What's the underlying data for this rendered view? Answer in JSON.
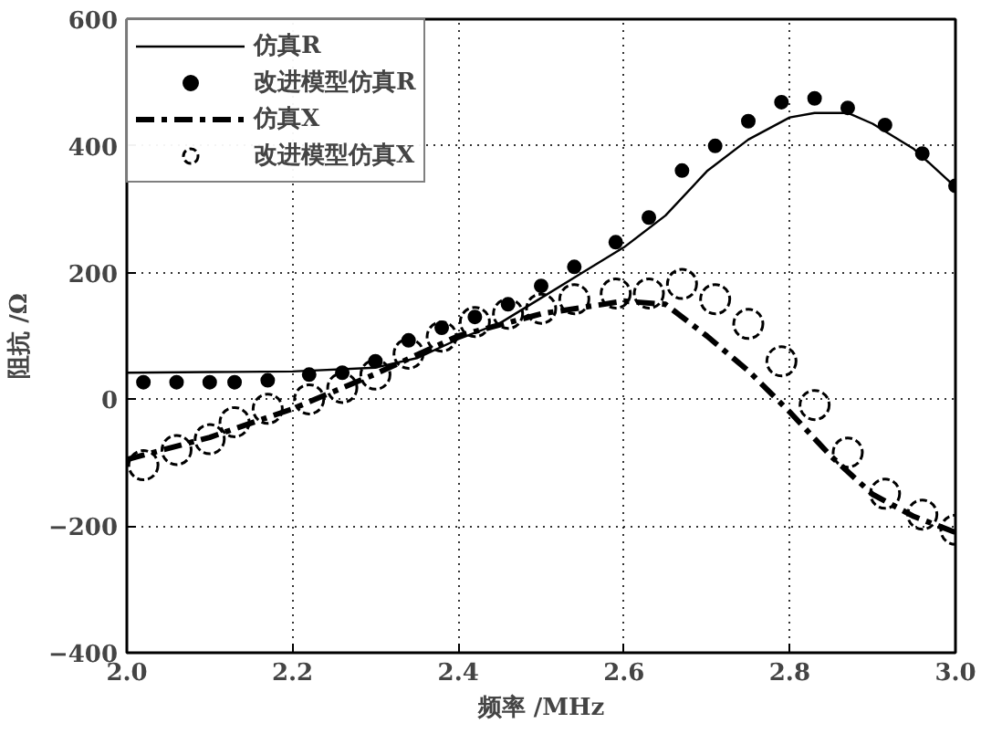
{
  "chart_data": {
    "type": "line",
    "xlabel": "频率 /MHz",
    "ylabel": "阻抗 /Ω",
    "xlim": [
      2.0,
      3.0
    ],
    "ylim": [
      -400,
      600
    ],
    "xticks": [
      {
        "value": 2.0,
        "label": "2.0"
      },
      {
        "value": 2.2,
        "label": "2.2"
      },
      {
        "value": 2.4,
        "label": "2.4"
      },
      {
        "value": 2.6,
        "label": "2.6"
      },
      {
        "value": 2.8,
        "label": "2.8"
      },
      {
        "value": 3.0,
        "label": "3.0"
      }
    ],
    "yticks": [
      -400,
      -200,
      0,
      200,
      400,
      600
    ],
    "grid": true,
    "legend": "top left",
    "series": [
      {
        "name": "仿真R",
        "line_style": "solid",
        "color": "#000000",
        "x": [
          2.0,
          2.1,
          2.2,
          2.3,
          2.35,
          2.4,
          2.45,
          2.5,
          2.55,
          2.6,
          2.65,
          2.7,
          2.75,
          2.8,
          2.83,
          2.87,
          2.9,
          2.95,
          3.0
        ],
        "values": [
          42,
          43,
          44,
          50,
          65,
          95,
          120,
          160,
          200,
          240,
          290,
          360,
          410,
          445,
          452,
          452,
          435,
          395,
          335
        ]
      },
      {
        "name": "改进模型仿真R",
        "type": "scatter",
        "marker": "circle",
        "color": "#000000",
        "x": [
          2.02,
          2.06,
          2.1,
          2.13,
          2.17,
          2.22,
          2.26,
          2.3,
          2.34,
          2.38,
          2.42,
          2.46,
          2.5,
          2.54,
          2.59,
          2.63,
          2.67,
          2.71,
          2.75,
          2.79,
          2.83,
          2.87,
          2.915,
          2.96,
          3.0
        ],
        "values": [
          27,
          27,
          27,
          27,
          30,
          39,
          42,
          60,
          93,
          113,
          130,
          150,
          179,
          209,
          248,
          287,
          361,
          400,
          439,
          469,
          475,
          460,
          433,
          388,
          337
        ]
      },
      {
        "name": "仿真X",
        "line_style": "dashed",
        "color": "#000000",
        "x": [
          2.0,
          2.1,
          2.2,
          2.3,
          2.4,
          2.5,
          2.6,
          2.65,
          2.7,
          2.75,
          2.8,
          2.85,
          2.9,
          2.95,
          3.0
        ],
        "values": [
          -95,
          -60,
          -15,
          40,
          100,
          135,
          155,
          150,
          100,
          45,
          -20,
          -90,
          -150,
          -185,
          -210
        ]
      },
      {
        "name": "改进模型仿真X",
        "type": "scatter",
        "marker": "open circle",
        "color": "#000000",
        "x": [
          2.02,
          2.06,
          2.1,
          2.13,
          2.17,
          2.22,
          2.26,
          2.3,
          2.34,
          2.38,
          2.42,
          2.46,
          2.5,
          2.54,
          2.59,
          2.63,
          2.67,
          2.71,
          2.75,
          2.79,
          2.83,
          2.87,
          2.915,
          2.96,
          3.0
        ],
        "values": [
          -104,
          -80,
          -63,
          -36,
          -15,
          0,
          18,
          39,
          72,
          99,
          122,
          135,
          143,
          158,
          167,
          167,
          182,
          158,
          119,
          60,
          -9,
          -84,
          -149,
          -182,
          -206
        ]
      }
    ]
  }
}
